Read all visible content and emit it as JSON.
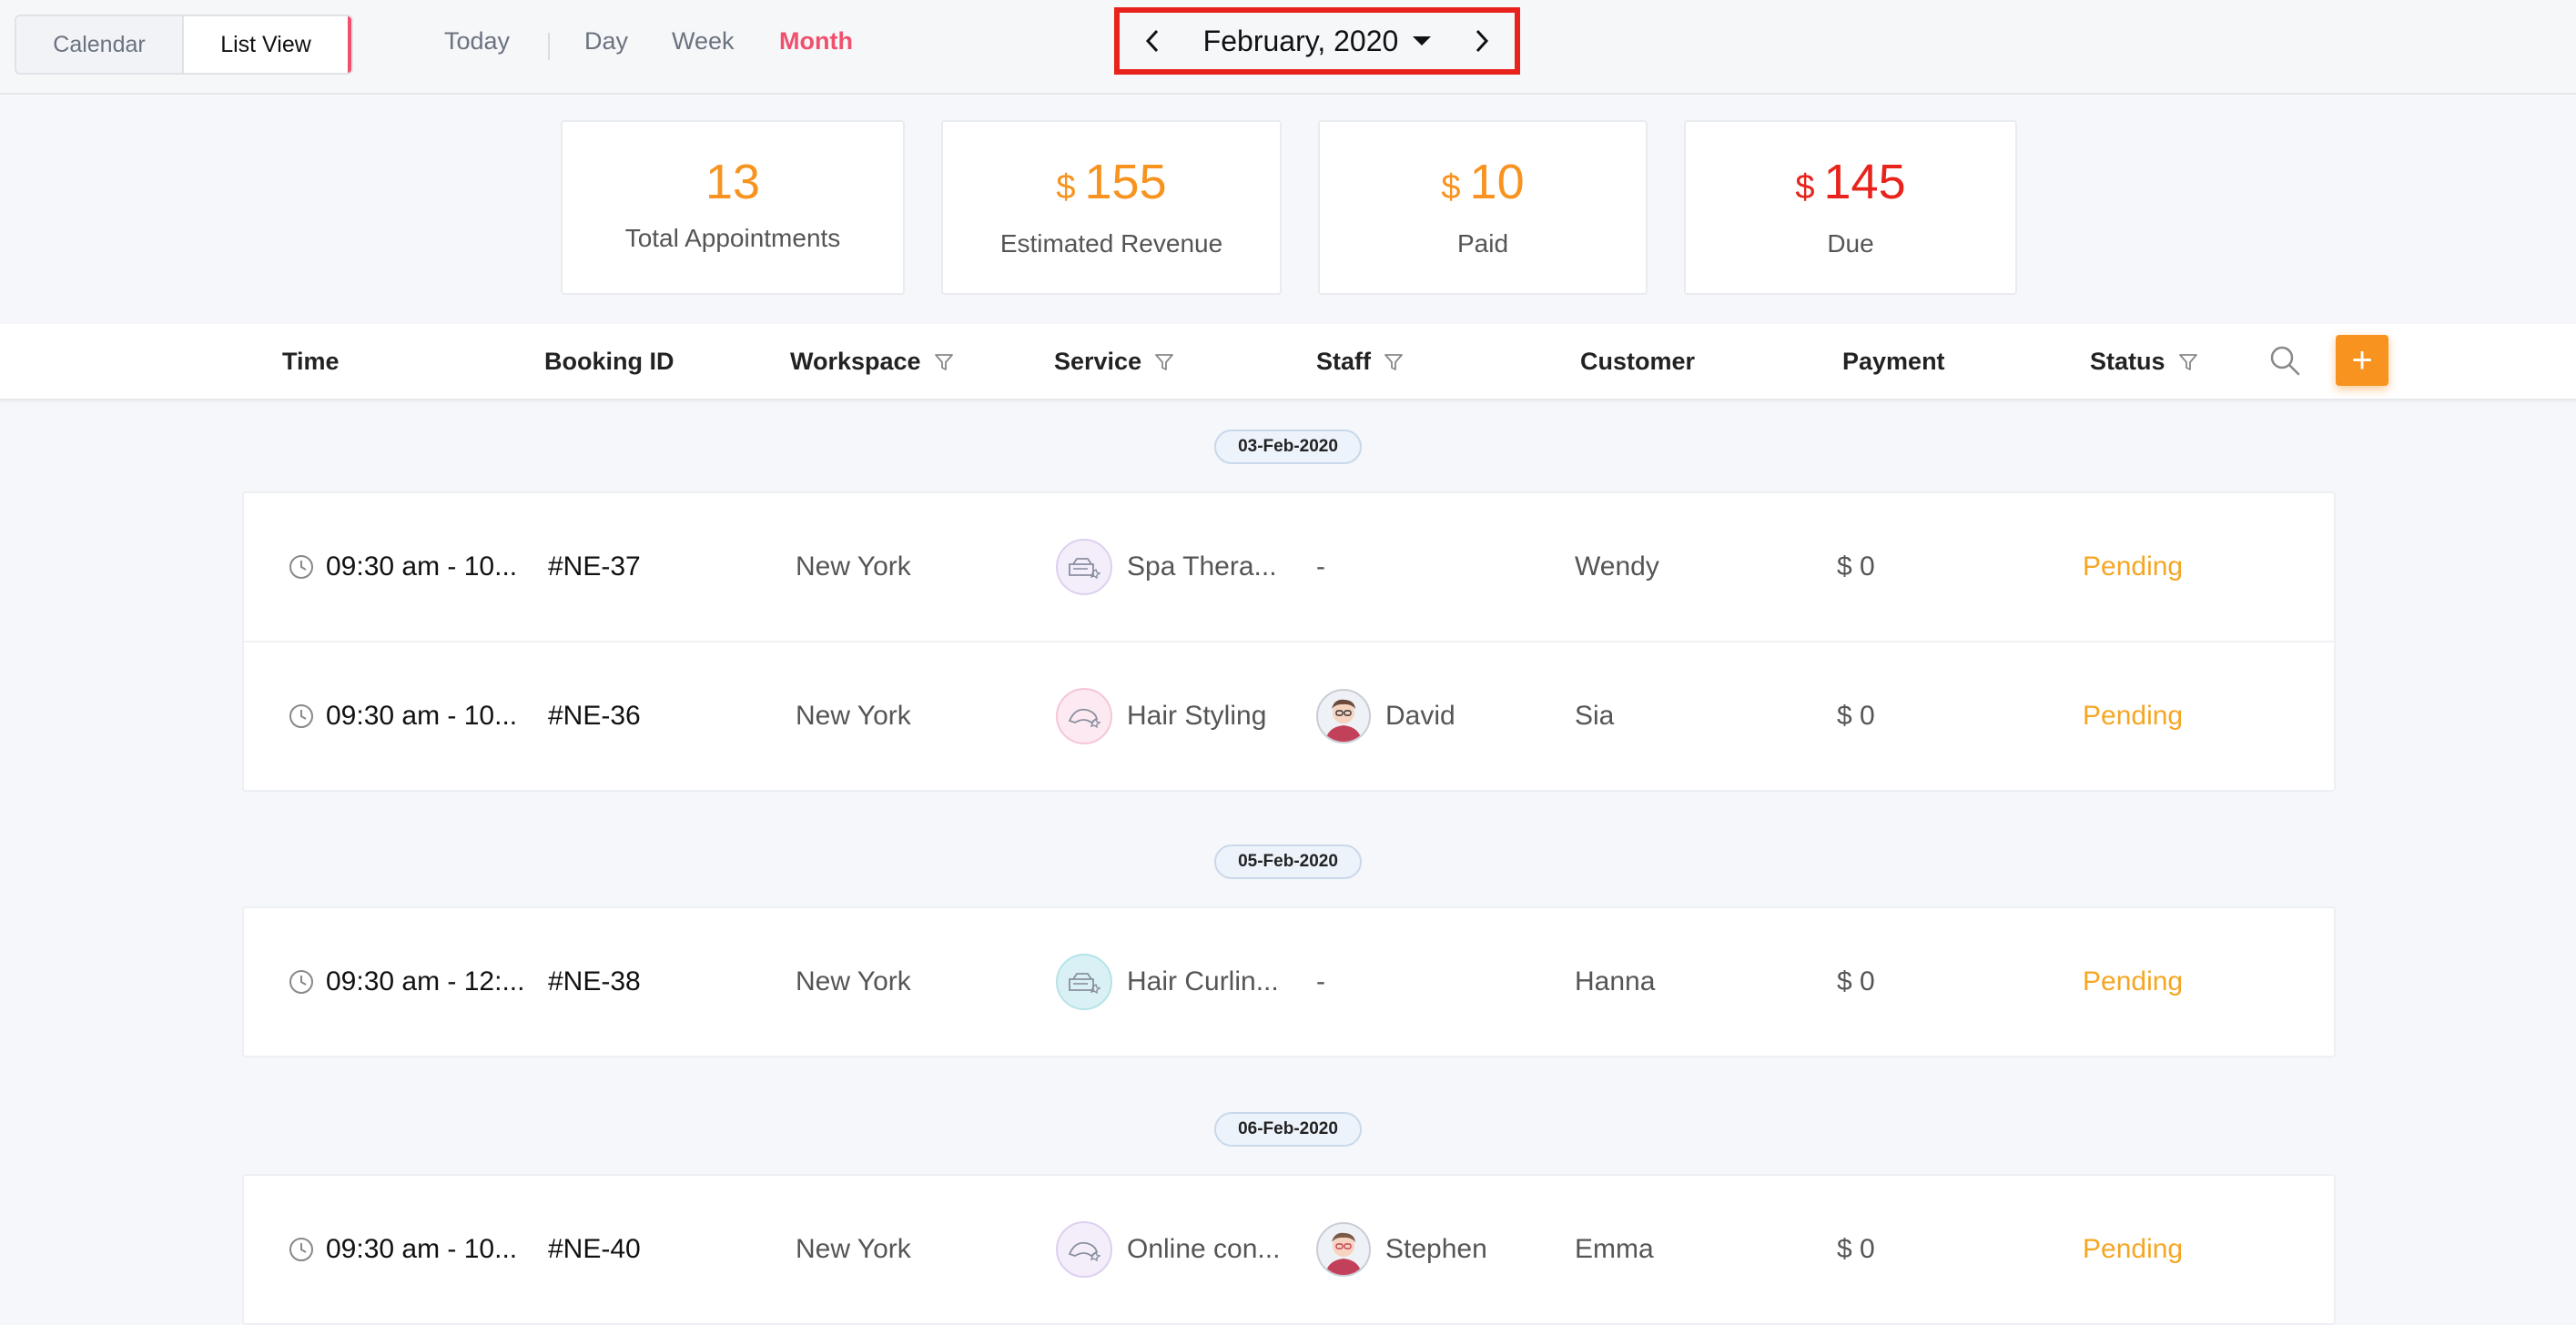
{
  "toolbar": {
    "view_toggle": {
      "calendar": "Calendar",
      "list_view": "List View"
    },
    "ranges": {
      "today": "Today",
      "day": "Day",
      "week": "Week",
      "month": "Month"
    },
    "active_range": "Month",
    "month_label": "February, 2020"
  },
  "stats": {
    "total_appointments": {
      "value": "13",
      "label": "Total Appointments"
    },
    "estimated_revenue": {
      "currency": "$",
      "value": "155",
      "label": "Estimated Revenue"
    },
    "paid": {
      "currency": "$",
      "value": "10",
      "label": "Paid"
    },
    "due": {
      "currency": "$",
      "value": "145",
      "label": "Due"
    }
  },
  "table": {
    "headers": {
      "time": "Time",
      "booking_id": "Booking ID",
      "workspace": "Workspace",
      "service": "Service",
      "staff": "Staff",
      "customer": "Customer",
      "payment": "Payment",
      "status": "Status"
    },
    "groups": [
      {
        "date": "03-Feb-2020",
        "rows": [
          {
            "time": "09:30 am - 10...",
            "id": "#NE-37",
            "workspace": "New York",
            "service": "Spa Thera...",
            "staff": "-",
            "customer": "Wendy",
            "payment": "$ 0",
            "status": "Pending"
          },
          {
            "time": "09:30 am - 10...",
            "id": "#NE-36",
            "workspace": "New York",
            "service": "Hair Styling",
            "staff": "David",
            "customer": "Sia",
            "payment": "$ 0",
            "status": "Pending"
          }
        ]
      },
      {
        "date": "05-Feb-2020",
        "rows": [
          {
            "time": "09:30 am - 12:...",
            "id": "#NE-38",
            "workspace": "New York",
            "service": "Hair Curlin...",
            "staff": "-",
            "customer": "Hanna",
            "payment": "$ 0",
            "status": "Pending"
          }
        ]
      },
      {
        "date": "06-Feb-2020",
        "rows": [
          {
            "time": "09:30 am - 10...",
            "id": "#NE-40",
            "workspace": "New York",
            "service": "Online con...",
            "staff": "Stephen",
            "customer": "Emma",
            "payment": "$ 0",
            "status": "Pending"
          }
        ]
      }
    ]
  },
  "icons": {
    "prev": "chevron-left-icon",
    "next": "chevron-right-icon",
    "month_dropdown": "caret-down-icon",
    "filter": "filter-icon",
    "search": "search-icon",
    "add": "plus-icon",
    "clock": "clock-icon"
  },
  "colors": {
    "accent_pink": "#f0506e",
    "highlight_red": "#e8231c",
    "orange": "#f7931e",
    "status_pending": "#f5a623"
  }
}
